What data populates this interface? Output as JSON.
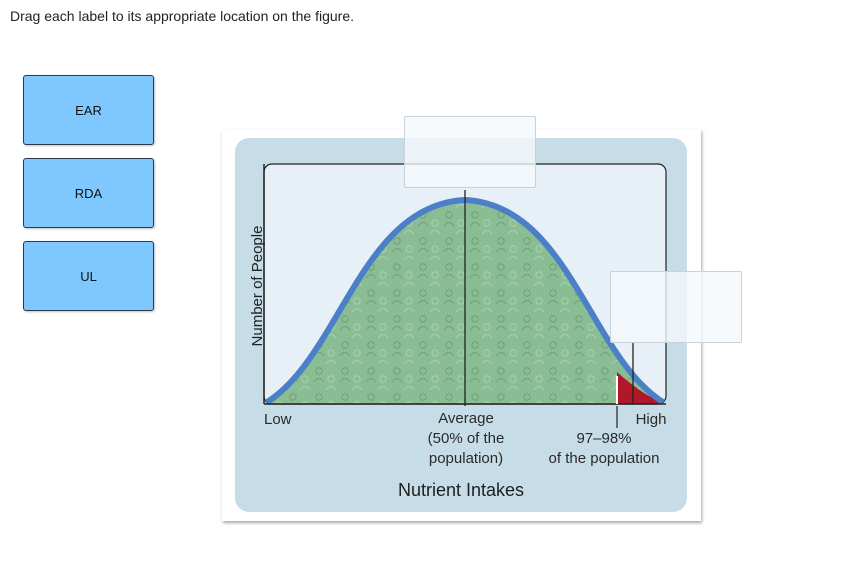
{
  "instruction": "Drag each label to its appropriate location on the figure.",
  "labels": [
    {
      "id": "ear",
      "text": "EAR"
    },
    {
      "id": "rda",
      "text": "RDA"
    },
    {
      "id": "ul",
      "text": "UL"
    }
  ],
  "figure": {
    "y_axis_label": "Number of People",
    "x_axis_title": "Nutrient Intakes",
    "low_label": "Low",
    "average_lines": [
      "Average",
      "(50% of the",
      "population)"
    ],
    "high_label": "High",
    "high_pct_lines": [
      "97–98%",
      "of the population"
    ]
  },
  "colors": {
    "label_fill": "#7fc8ff",
    "panel_bg": "#c6dde8",
    "plot_bg": "#e6f0f6",
    "curve_fill": "#8bbd94",
    "curve_stroke": "#4b7fc7",
    "tail_fill": "#b0182a"
  }
}
